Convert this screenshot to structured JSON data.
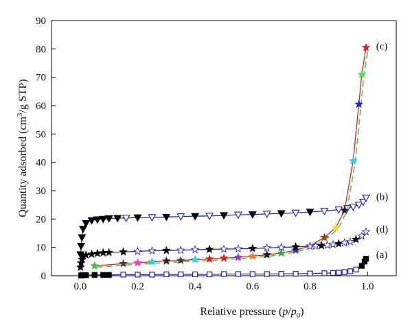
{
  "chart_data": {
    "type": "scatter",
    "title": "",
    "xlabel": {
      "pre": "Relative pressure (",
      "p1": "p",
      "slash": "/",
      "p2": "p",
      "sub": "0",
      "post": ")"
    },
    "ylabel": {
      "pre": "Quantity adsorbed (cm",
      "sup": "3",
      "post": "/g STP)"
    },
    "xlim": [
      -0.1,
      1.1
    ],
    "ylim": [
      0,
      90
    ],
    "xticks": [
      "0.0",
      "0.2",
      "0.4",
      "0.6",
      "0.8",
      "1.0"
    ],
    "xtick_values": [
      0.0,
      0.2,
      0.4,
      0.6,
      0.8,
      1.0
    ],
    "yticks": [
      "0",
      "10",
      "20",
      "30",
      "40",
      "50",
      "60",
      "70",
      "80",
      "90"
    ],
    "ytick_values": [
      0,
      10,
      20,
      30,
      40,
      50,
      60,
      70,
      80,
      90
    ],
    "grid": false,
    "series": [
      {
        "label": "(a)",
        "marker": "square",
        "line_color": "#2a2ab0",
        "x": [
          0.003,
          0.01,
          0.02,
          0.05,
          0.08,
          0.1,
          0.15,
          0.2,
          0.25,
          0.3,
          0.35,
          0.4,
          0.45,
          0.5,
          0.55,
          0.6,
          0.65,
          0.7,
          0.75,
          0.8,
          0.85,
          0.88,
          0.9,
          0.92,
          0.94,
          0.96,
          0.98,
          0.99,
          0.995
        ],
        "y": [
          0.1,
          0.2,
          0.2,
          0.3,
          0.3,
          0.3,
          0.4,
          0.4,
          0.4,
          0.5,
          0.5,
          0.5,
          0.5,
          0.6,
          0.6,
          0.6,
          0.6,
          0.7,
          0.7,
          0.8,
          0.9,
          1.0,
          1.1,
          1.3,
          1.6,
          2.2,
          3.5,
          5.0,
          6.0
        ]
      },
      {
        "label": "(b)",
        "marker": "triangle-down",
        "line_color": "#2a2ab0",
        "x": [
          0.001,
          0.003,
          0.006,
          0.01,
          0.02,
          0.04,
          0.06,
          0.08,
          0.1,
          0.13,
          0.16,
          0.2,
          0.25,
          0.3,
          0.35,
          0.4,
          0.45,
          0.5,
          0.55,
          0.6,
          0.65,
          0.7,
          0.75,
          0.8,
          0.85,
          0.9,
          0.93,
          0.95,
          0.97,
          0.985,
          0.995
        ],
        "y": [
          7.5,
          10.5,
          13.5,
          16.5,
          18.5,
          19.5,
          19.8,
          20.0,
          20.2,
          20.3,
          20.4,
          20.5,
          20.6,
          20.7,
          20.9,
          21.0,
          21.1,
          21.3,
          21.5,
          21.6,
          21.8,
          22.0,
          22.2,
          22.5,
          22.8,
          23.3,
          23.8,
          24.3,
          25.0,
          26.0,
          27.5
        ]
      },
      {
        "label": "(c)",
        "marker": "star",
        "line_color": "#d42020",
        "dash_color": "#3ec23e",
        "x": [
          0.05,
          0.15,
          0.2,
          0.25,
          0.3,
          0.35,
          0.4,
          0.45,
          0.5,
          0.55,
          0.6,
          0.65,
          0.7,
          0.75,
          0.8,
          0.85,
          0.89,
          0.92,
          0.95,
          0.97,
          0.98,
          0.995
        ],
        "y": [
          3.5,
          4.3,
          4.6,
          4.9,
          5.2,
          5.4,
          5.7,
          5.9,
          6.2,
          6.5,
          6.9,
          7.4,
          8.0,
          9.0,
          10.5,
          13.5,
          17.0,
          23.0,
          40.5,
          60.5,
          71.0,
          80.5
        ],
        "colors": [
          "#3ec23e",
          "#444444",
          "#ff33cc",
          "#22d8e8",
          "#222222",
          "#444444",
          "#22d8e8",
          "#d42020",
          "#d42020",
          "#9b30d9",
          "#ff7a1a",
          "#111111",
          "#2fa84f",
          "#2222cc",
          "#9b30d9",
          "#8a4a1a",
          "#f0e020",
          "#222222",
          "#22d8e8",
          "#2222cc",
          "#44ee44",
          "#d42020"
        ]
      },
      {
        "label": "(d)",
        "marker": "star",
        "line_color": "#2a2ab0",
        "x": [
          0.001,
          0.003,
          0.006,
          0.01,
          0.02,
          0.04,
          0.06,
          0.08,
          0.1,
          0.15,
          0.2,
          0.25,
          0.3,
          0.35,
          0.4,
          0.45,
          0.5,
          0.55,
          0.6,
          0.65,
          0.7,
          0.75,
          0.8,
          0.82,
          0.84,
          0.86,
          0.88,
          0.9,
          0.92,
          0.94,
          0.96,
          0.98,
          0.995
        ],
        "y": [
          3.0,
          4.5,
          5.8,
          6.8,
          7.3,
          7.6,
          7.9,
          8.1,
          8.2,
          8.4,
          8.6,
          8.8,
          8.9,
          9.0,
          9.2,
          9.3,
          9.4,
          9.5,
          9.6,
          9.8,
          10.0,
          10.2,
          10.4,
          10.5,
          10.6,
          10.8,
          11.0,
          11.3,
          11.6,
          12.0,
          12.8,
          14.0,
          15.5
        ]
      }
    ],
    "labels": [
      {
        "text": "(c)",
        "x": 1.03,
        "y": 81
      },
      {
        "text": "(b)",
        "x": 1.03,
        "y": 28
      },
      {
        "text": "(d)",
        "x": 1.03,
        "y": 16.5
      },
      {
        "text": "(a)",
        "x": 1.03,
        "y": 7.5
      }
    ]
  }
}
